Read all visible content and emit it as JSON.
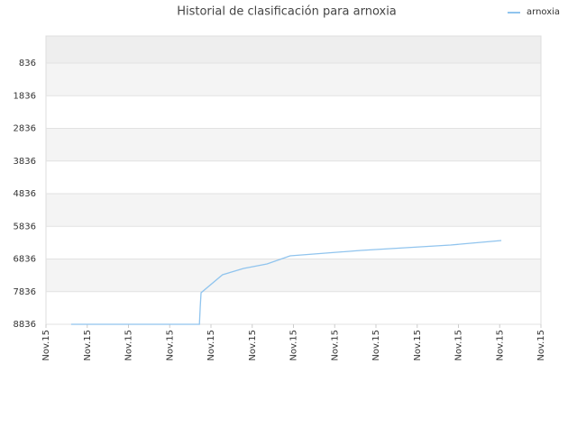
{
  "chart_data": {
    "type": "line",
    "title": "Historial de clasificación para arnoxia",
    "x": [
      0.61,
      3.72,
      3.74,
      3.76,
      4.28,
      4.79,
      5.36,
      5.92,
      6.49,
      7.63,
      8.72,
      9.81,
      11.04
    ],
    "series": [
      {
        "name": "arnoxia",
        "color": "#90c4ee",
        "values": [
          8836,
          8836,
          8300,
          7870,
          7319,
          7126,
          6988,
          6740,
          6684,
          6574,
          6491,
          6408,
          6270
        ]
      }
    ],
    "xlim": [
      0,
      12
    ],
    "xticks": [
      {
        "value": 0,
        "label": "Nov.15"
      },
      {
        "value": 1,
        "label": "Nov.15"
      },
      {
        "value": 2,
        "label": "Nov.15"
      },
      {
        "value": 3,
        "label": "Nov.15"
      },
      {
        "value": 4,
        "label": "Nov.15"
      },
      {
        "value": 5,
        "label": "Nov.15"
      },
      {
        "value": 6,
        "label": "Nov.15"
      },
      {
        "value": 7,
        "label": "Nov.15"
      },
      {
        "value": 8,
        "label": "Nov.15"
      },
      {
        "value": 9,
        "label": "Nov.15"
      },
      {
        "value": 10,
        "label": "Nov.15"
      },
      {
        "value": 11,
        "label": "Nov.15"
      },
      {
        "value": 12,
        "label": "Nov.15"
      }
    ],
    "ylim": [
      8836,
      8
    ],
    "yticks": [
      836,
      1836,
      2836,
      3836,
      4836,
      5836,
      6836,
      7836,
      8836
    ],
    "grid": true,
    "legend": "top-right"
  }
}
